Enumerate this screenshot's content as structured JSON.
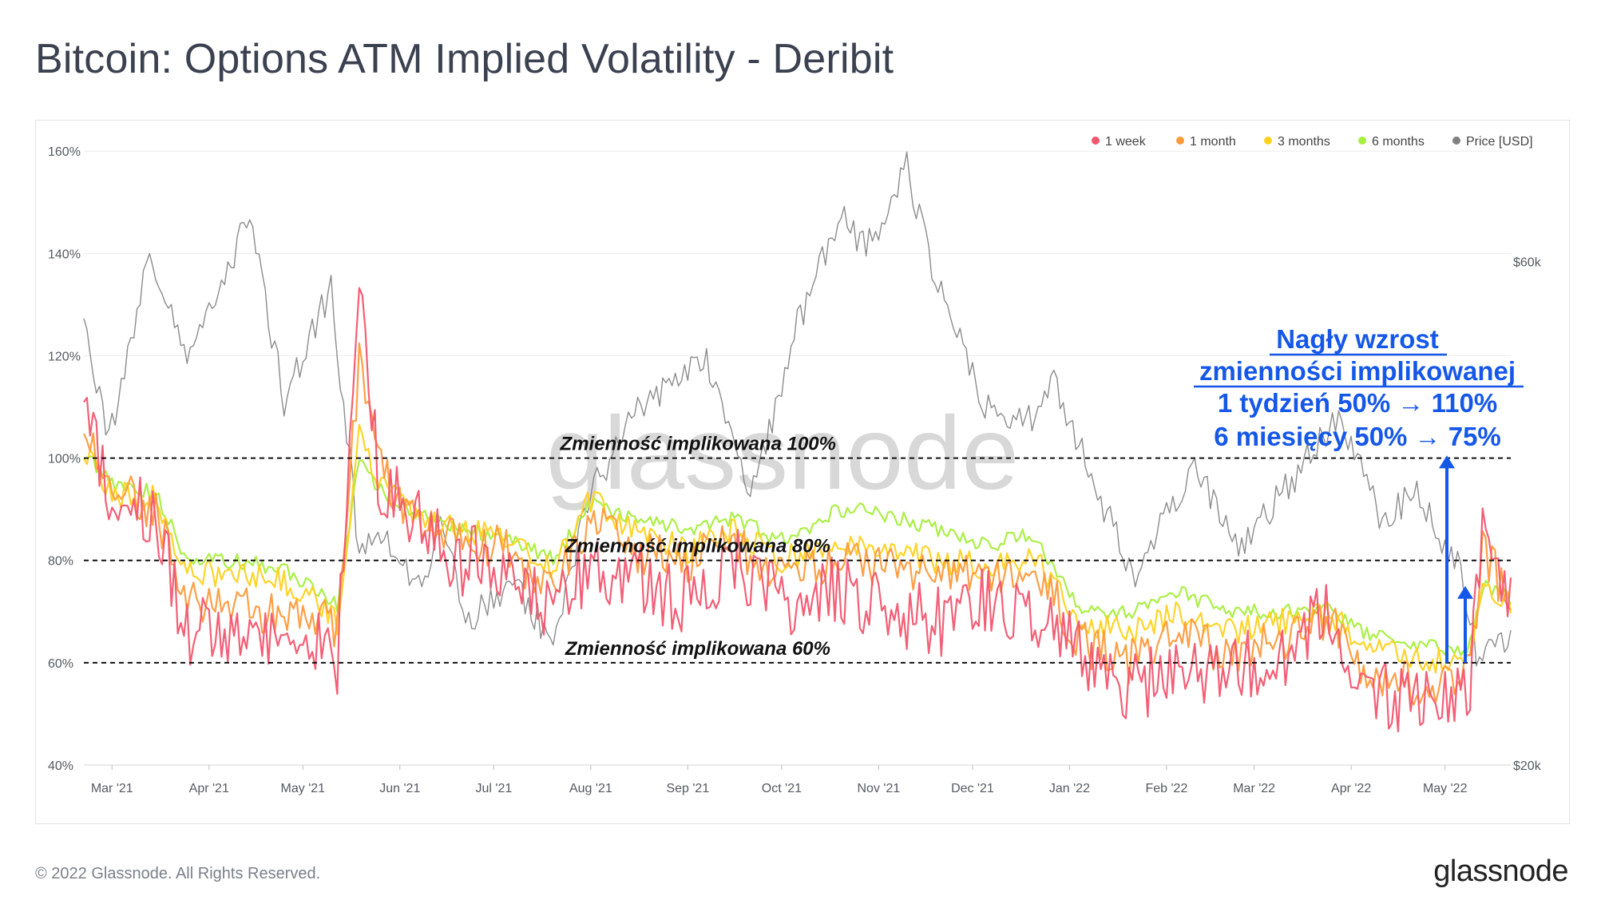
{
  "title": "Bitcoin: Options ATM Implied Volatility - Deribit",
  "copyright": "© 2022 Glassnode. All Rights Reserved.",
  "brand": "glassnode",
  "watermark": "glassnode",
  "chart_data": {
    "type": "line",
    "title": "Bitcoin: Options ATM Implied Volatility - Deribit",
    "x_tick_labels": [
      "Mar '21",
      "Apr '21",
      "May '21",
      "Jun '21",
      "Jul '21",
      "Aug '21",
      "Sep '21",
      "Oct '21",
      "Nov '21",
      "Dec '21",
      "Jan '22",
      "Feb '22",
      "Mar '22",
      "Apr '22",
      "May '22"
    ],
    "x_range": [
      "2021-02-20",
      "2022-05-22"
    ],
    "y_left_ticks": [
      "40%",
      "60%",
      "80%",
      "100%",
      "120%",
      "140%",
      "160%"
    ],
    "y_left_range": [
      40,
      163
    ],
    "y_right_ticks": [
      "$20k",
      "$60k"
    ],
    "y_right_range_usd": [
      20000,
      70000
    ],
    "grid": true,
    "legend_position": "top-right",
    "legend": [
      {
        "key": "1w",
        "label": "1 week",
        "color": "#f2566f"
      },
      {
        "key": "1m",
        "label": "1 month",
        "color": "#ff9a3c"
      },
      {
        "key": "3m",
        "label": "3 months",
        "color": "#ffd21f"
      },
      {
        "key": "6m",
        "label": "6 months",
        "color": "#a6ef3c"
      },
      {
        "key": "price",
        "label": "Price [USD]",
        "color": "#808080"
      }
    ],
    "ref_lines": [
      {
        "value": 100,
        "label": "Zmienność implikowana 100%"
      },
      {
        "value": 80,
        "label": "Zmienność implikowana 80%"
      },
      {
        "value": 60,
        "label": "Zmienność implikowana 60%"
      }
    ],
    "annotation": {
      "line1": "Nagły wzrost",
      "line2": "zmienności implikowanej",
      "line3": "1 tydzień 50% → 110%",
      "line4": "6 miesięcy 50% → 75%",
      "color": "#1557e8"
    },
    "series_keypoints": {
      "6m": [
        [
          "2021-02-20",
          101
        ],
        [
          "2021-03-01",
          95
        ],
        [
          "2021-03-15",
          93
        ],
        [
          "2021-03-25",
          80
        ],
        [
          "2021-04-10",
          80
        ],
        [
          "2021-04-25",
          78
        ],
        [
          "2021-05-05",
          74
        ],
        [
          "2021-05-12",
          71
        ],
        [
          "2021-05-19",
          100
        ],
        [
          "2021-05-25",
          94
        ],
        [
          "2021-06-05",
          90
        ],
        [
          "2021-06-20",
          86
        ],
        [
          "2021-07-05",
          85
        ],
        [
          "2021-07-20",
          80
        ],
        [
          "2021-08-01",
          91
        ],
        [
          "2021-08-15",
          88
        ],
        [
          "2021-09-01",
          86
        ],
        [
          "2021-09-15",
          88
        ],
        [
          "2021-10-01",
          84
        ],
        [
          "2021-10-20",
          90
        ],
        [
          "2021-11-05",
          89
        ],
        [
          "2021-11-20",
          86
        ],
        [
          "2021-12-05",
          83
        ],
        [
          "2021-12-20",
          85
        ],
        [
          "2022-01-05",
          70
        ],
        [
          "2022-01-20",
          70
        ],
        [
          "2022-02-05",
          74
        ],
        [
          "2022-02-20",
          70
        ],
        [
          "2022-03-10",
          70
        ],
        [
          "2022-03-25",
          71
        ],
        [
          "2022-04-05",
          66
        ],
        [
          "2022-04-20",
          64
        ],
        [
          "2022-05-05",
          62
        ],
        [
          "2022-05-09",
          64
        ],
        [
          "2022-05-13",
          75
        ],
        [
          "2022-05-22",
          73
        ]
      ],
      "3m": [
        [
          "2021-02-20",
          101
        ],
        [
          "2021-03-01",
          93
        ],
        [
          "2021-03-15",
          92
        ],
        [
          "2021-03-25",
          78
        ],
        [
          "2021-04-10",
          77
        ],
        [
          "2021-04-25",
          76
        ],
        [
          "2021-05-05",
          72
        ],
        [
          "2021-05-12",
          68
        ],
        [
          "2021-05-19",
          104
        ],
        [
          "2021-05-25",
          96
        ],
        [
          "2021-06-05",
          89
        ],
        [
          "2021-06-20",
          86
        ],
        [
          "2021-07-05",
          84
        ],
        [
          "2021-07-20",
          78
        ],
        [
          "2021-08-01",
          92
        ],
        [
          "2021-08-15",
          86
        ],
        [
          "2021-09-01",
          82
        ],
        [
          "2021-09-15",
          86
        ],
        [
          "2021-10-01",
          80
        ],
        [
          "2021-10-20",
          84
        ],
        [
          "2021-11-05",
          82
        ],
        [
          "2021-11-20",
          80
        ],
        [
          "2021-12-05",
          79
        ],
        [
          "2021-12-20",
          81
        ],
        [
          "2022-01-05",
          68
        ],
        [
          "2022-01-20",
          66
        ],
        [
          "2022-02-05",
          70
        ],
        [
          "2022-02-20",
          66
        ],
        [
          "2022-03-10",
          68
        ],
        [
          "2022-03-25",
          70
        ],
        [
          "2022-04-05",
          63
        ],
        [
          "2022-04-20",
          61
        ],
        [
          "2022-05-05",
          60
        ],
        [
          "2022-05-09",
          61
        ],
        [
          "2022-05-13",
          74
        ],
        [
          "2022-05-22",
          72
        ]
      ],
      "1m": [
        [
          "2021-02-20",
          108
        ],
        [
          "2021-03-01",
          95
        ],
        [
          "2021-03-15",
          90
        ],
        [
          "2021-03-25",
          72
        ],
        [
          "2021-04-10",
          72
        ],
        [
          "2021-04-25",
          68
        ],
        [
          "2021-05-05",
          70
        ],
        [
          "2021-05-12",
          65
        ],
        [
          "2021-05-19",
          118
        ],
        [
          "2021-05-25",
          98
        ],
        [
          "2021-06-05",
          88
        ],
        [
          "2021-06-20",
          84
        ],
        [
          "2021-07-05",
          82
        ],
        [
          "2021-07-20",
          74
        ],
        [
          "2021-08-01",
          88
        ],
        [
          "2021-08-15",
          82
        ],
        [
          "2021-09-01",
          80
        ],
        [
          "2021-09-15",
          84
        ],
        [
          "2021-10-01",
          76
        ],
        [
          "2021-10-20",
          80
        ],
        [
          "2021-11-05",
          78
        ],
        [
          "2021-11-20",
          76
        ],
        [
          "2021-12-05",
          77
        ],
        [
          "2021-12-20",
          79
        ],
        [
          "2022-01-05",
          64
        ],
        [
          "2022-01-20",
          60
        ],
        [
          "2022-02-05",
          66
        ],
        [
          "2022-02-20",
          62
        ],
        [
          "2022-03-10",
          64
        ],
        [
          "2022-03-25",
          68
        ],
        [
          "2022-04-05",
          58
        ],
        [
          "2022-04-20",
          56
        ],
        [
          "2022-05-05",
          56
        ],
        [
          "2022-05-09",
          58
        ],
        [
          "2022-05-13",
          82
        ],
        [
          "2022-05-22",
          72
        ]
      ],
      "1w": [
        [
          "2021-02-20",
          112
        ],
        [
          "2021-03-01",
          92
        ],
        [
          "2021-03-15",
          88
        ],
        [
          "2021-03-25",
          66
        ],
        [
          "2021-04-10",
          66
        ],
        [
          "2021-04-25",
          62
        ],
        [
          "2021-05-05",
          65
        ],
        [
          "2021-05-12",
          60
        ],
        [
          "2021-05-19",
          140
        ],
        [
          "2021-05-25",
          96
        ],
        [
          "2021-06-05",
          88
        ],
        [
          "2021-06-20",
          80
        ],
        [
          "2021-07-05",
          80
        ],
        [
          "2021-07-20",
          70
        ],
        [
          "2021-08-01",
          80
        ],
        [
          "2021-08-15",
          76
        ],
        [
          "2021-09-01",
          72
        ],
        [
          "2021-09-15",
          80
        ],
        [
          "2021-10-01",
          72
        ],
        [
          "2021-10-20",
          74
        ],
        [
          "2021-11-05",
          70
        ],
        [
          "2021-11-20",
          68
        ],
        [
          "2021-12-05",
          72
        ],
        [
          "2021-12-20",
          70
        ],
        [
          "2022-01-05",
          62
        ],
        [
          "2022-01-20",
          54
        ],
        [
          "2022-02-05",
          60
        ],
        [
          "2022-02-20",
          58
        ],
        [
          "2022-03-10",
          62
        ],
        [
          "2022-03-25",
          70
        ],
        [
          "2022-04-05",
          56
        ],
        [
          "2022-04-20",
          52
        ],
        [
          "2022-05-05",
          52
        ],
        [
          "2022-05-09",
          56
        ],
        [
          "2022-05-13",
          90
        ],
        [
          "2022-05-22",
          70
        ]
      ],
      "price": [
        [
          "2021-02-20",
          55000
        ],
        [
          "2021-02-28",
          46000
        ],
        [
          "2021-03-13",
          60500
        ],
        [
          "2021-03-25",
          52500
        ],
        [
          "2021-04-14",
          63500
        ],
        [
          "2021-04-25",
          49000
        ],
        [
          "2021-05-10",
          58000
        ],
        [
          "2021-05-19",
          37000
        ],
        [
          "2021-05-27",
          38500
        ],
        [
          "2021-06-08",
          33500
        ],
        [
          "2021-06-14",
          40000
        ],
        [
          "2021-06-22",
          31500
        ],
        [
          "2021-07-07",
          34500
        ],
        [
          "2021-07-20",
          29800
        ],
        [
          "2021-08-01",
          41500
        ],
        [
          "2021-08-14",
          47500
        ],
        [
          "2021-08-22",
          49300
        ],
        [
          "2021-09-07",
          52500
        ],
        [
          "2021-09-21",
          41000
        ],
        [
          "2021-10-06",
          55000
        ],
        [
          "2021-10-20",
          64000
        ],
        [
          "2021-10-28",
          61000
        ],
        [
          "2021-11-10",
          67500
        ],
        [
          "2021-11-20",
          58000
        ],
        [
          "2021-12-04",
          49000
        ],
        [
          "2021-12-18",
          47000
        ],
        [
          "2021-12-27",
          50500
        ],
        [
          "2022-01-10",
          41500
        ],
        [
          "2022-01-22",
          35000
        ],
        [
          "2022-02-10",
          44000
        ],
        [
          "2022-02-24",
          37000
        ],
        [
          "2022-03-28",
          47500
        ],
        [
          "2022-04-11",
          39500
        ],
        [
          "2022-04-21",
          41700
        ],
        [
          "2022-05-05",
          36000
        ],
        [
          "2022-05-11",
          29000
        ],
        [
          "2022-05-22",
          30400
        ]
      ]
    }
  }
}
